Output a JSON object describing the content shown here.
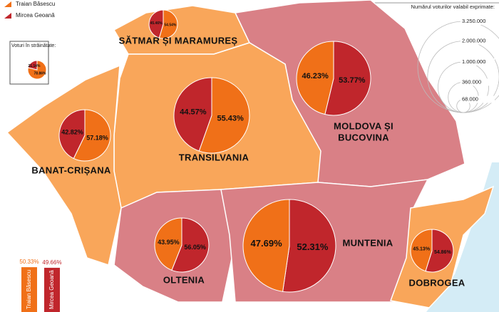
{
  "legend": {
    "candidates": [
      {
        "name": "Traian Băsescu",
        "color": "#f07018"
      },
      {
        "name": "Mircea Geoană",
        "color": "#c0262c"
      }
    ]
  },
  "abroad": {
    "title": "Voturi în străinătate:",
    "values": [
      78.86,
      21.14
    ],
    "value_labels": [
      "78.86%",
      "21.14%"
    ]
  },
  "regions": [
    {
      "name": "SĂTMAR ȘI MARAMUREȘ",
      "values": [
        54.54,
        45.46
      ],
      "value_labels": [
        "54.54%",
        "45.46%"
      ]
    },
    {
      "name": "BANAT-CRIȘANA",
      "values": [
        57.18,
        42.82
      ],
      "value_labels": [
        "57.18%",
        "42.82%"
      ]
    },
    {
      "name": "TRANSILVANIA",
      "values": [
        55.43,
        44.57
      ],
      "value_labels": [
        "55.43%",
        "44.57%"
      ]
    },
    {
      "name": [
        "MOLDOVA ȘI",
        "BUCOVINA"
      ],
      "values": [
        46.23,
        53.77
      ],
      "value_labels": [
        "46.23%",
        "53.77%"
      ]
    },
    {
      "name": "OLTENIA",
      "values": [
        43.95,
        56.05
      ],
      "value_labels": [
        "43.95%",
        "56.05%"
      ]
    },
    {
      "name": "MUNTENIA",
      "values": [
        47.69,
        52.31
      ],
      "value_labels": [
        "47.69%",
        "52.31%"
      ]
    },
    {
      "name": "DOBROGEA",
      "values": [
        45.13,
        54.86
      ],
      "value_labels": [
        "45.13%",
        "54.86%"
      ]
    }
  ],
  "total": {
    "values": [
      50.33,
      49.66
    ],
    "value_labels": [
      "50.33%",
      "49.66%"
    ]
  },
  "size_legend": {
    "title": "Numărul voturilor valabil exprimate:",
    "values": [
      3250000,
      2000000,
      1000000,
      360000,
      68000
    ],
    "value_labels": [
      "3.250.000",
      "2.000.000",
      "1.000.000",
      "360.000",
      "68.000"
    ]
  }
}
